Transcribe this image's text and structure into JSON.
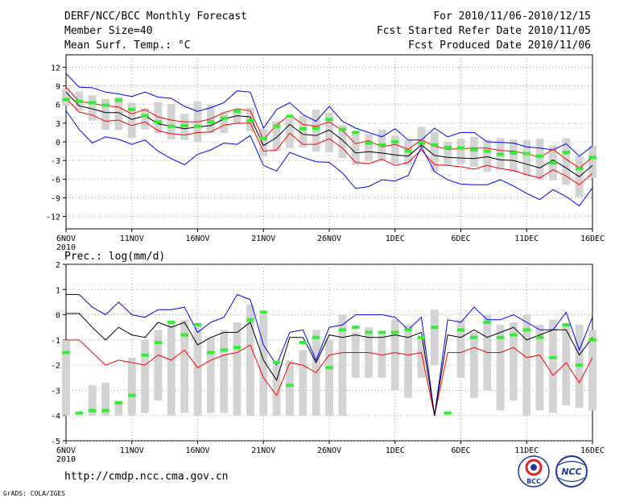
{
  "header": {
    "title": "DERF/NCC/BCC Monthly Forecast",
    "member_size": "Member Size=40",
    "variable": "Mean Surf. Temp.: °C",
    "for_period": "For 2010/11/06-2010/12/15",
    "fcst_started": "Fcst Started Refer Date 2010/11/05",
    "fcst_produced": "Fcst Produced Date 2010/11/06"
  },
  "footer": {
    "url": "http://cmdp.ncc.cma.gov.cn",
    "grads": "GrADS: COLA/IGES",
    "logo_bcc": "BCC",
    "logo_ncc": "NCC"
  },
  "colors": {
    "max": "#0000ff",
    "min": "#ff0000",
    "mean": "#000000",
    "obs": "#33ee33",
    "box": "#d3d3d3"
  },
  "chart_data": [
    {
      "type": "line",
      "title": "Mean Surf. Temp.: °C",
      "ylim": [
        -14,
        14
      ],
      "yticks": [
        12,
        9,
        6,
        3,
        0,
        -3,
        -6,
        -9,
        -12
      ],
      "xlim": [
        0,
        40
      ],
      "xticks": [
        {
          "pos": 0,
          "label": "6NOV",
          "sub": "2010"
        },
        {
          "pos": 5,
          "label": "11NOV"
        },
        {
          "pos": 10,
          "label": "16NOV"
        },
        {
          "pos": 15,
          "label": "21NOV"
        },
        {
          "pos": 20,
          "label": "26NOV"
        },
        {
          "pos": 25,
          "label": "1DEC"
        },
        {
          "pos": 30,
          "label": "6DEC"
        },
        {
          "pos": 35,
          "label": "11DEC"
        },
        {
          "pos": 40,
          "label": "16DEC"
        }
      ],
      "series": [
        {
          "name": "max",
          "values": [
            11.0,
            8.8,
            8.7,
            8.0,
            7.7,
            7.3,
            8.0,
            7.2,
            7.0,
            5.7,
            4.9,
            5.5,
            6.3,
            8.2,
            8.0,
            2.2,
            5.2,
            6.3,
            4.4,
            3.3,
            5.7,
            3.3,
            2.2,
            1.5,
            0.8,
            2.1,
            0.3,
            0.3,
            2.2,
            0.8,
            1.5,
            1.5,
            0.0,
            -0.1,
            -0.2,
            -0.8,
            -1.0,
            -1.3,
            -0.3,
            -2.3,
            -0.7
          ]
        },
        {
          "name": "min",
          "values": [
            5.0,
            2.0,
            -0.2,
            0.8,
            0.4,
            -0.4,
            0.3,
            -1.5,
            -2.7,
            -3.7,
            -2.0,
            -1.3,
            -0.2,
            -0.4,
            1.0,
            -3.8,
            -4.7,
            -1.7,
            -2.5,
            -3.2,
            -3.3,
            -5.0,
            -7.5,
            -7.2,
            -6.1,
            -6.3,
            -5.4,
            -0.8,
            -4.8,
            -6.1,
            -6.8,
            -6.9,
            -6.9,
            -6.1,
            -7.1,
            -8.3,
            -9.3,
            -7.7,
            -8.8,
            -10.3,
            -7.4
          ]
        },
        {
          "name": "upper",
          "values": [
            8.8,
            6.5,
            6.2,
            5.8,
            5.6,
            4.5,
            5.2,
            4.0,
            3.5,
            3.2,
            3.2,
            3.7,
            4.7,
            5.3,
            5.0,
            0.4,
            2.7,
            4.3,
            2.8,
            2.5,
            3.2,
            1.8,
            -0.3,
            0.2,
            -0.8,
            -0.4,
            -1.2,
            0.3,
            -0.7,
            -1.2,
            -1.1,
            -1.0,
            -1.0,
            -1.4,
            -1.5,
            -1.9,
            -2.5,
            -1.2,
            -2.8,
            -4.2,
            -2.5
          ]
        },
        {
          "name": "lower",
          "values": [
            7.0,
            4.8,
            4.3,
            3.3,
            3.5,
            2.6,
            3.2,
            1.8,
            1.3,
            1.1,
            1.5,
            1.6,
            2.7,
            3.0,
            3.0,
            -1.5,
            -1.3,
            1.4,
            -0.4,
            -0.4,
            0.5,
            -1.0,
            -3.3,
            -3.5,
            -2.8,
            -3.8,
            -3.3,
            -1.3,
            -3.7,
            -3.8,
            -4.0,
            -4.4,
            -3.8,
            -4.3,
            -4.6,
            -5.3,
            -5.8,
            -4.5,
            -5.5,
            -6.9,
            -5.1
          ]
        },
        {
          "name": "mean",
          "values": [
            8.0,
            5.8,
            5.3,
            4.7,
            4.7,
            3.6,
            4.2,
            2.9,
            2.5,
            2.1,
            2.4,
            2.6,
            3.7,
            4.2,
            4.0,
            -0.6,
            0.7,
            2.8,
            1.2,
            1.0,
            1.9,
            0.3,
            -1.8,
            -1.6,
            -1.8,
            -2.1,
            -2.3,
            -0.5,
            -2.2,
            -2.5,
            -2.6,
            -2.7,
            -2.4,
            -2.9,
            -3.0,
            -3.6,
            -4.2,
            -2.9,
            -4.2,
            -5.6,
            -3.8
          ]
        },
        {
          "name": "obs",
          "values": [
            6.8,
            6.5,
            6.3,
            5.9,
            6.7,
            5.2,
            4.2,
            3.2,
            2.5,
            2.6,
            2.5,
            3.2,
            3.8,
            4.9,
            3.4,
            0.5,
            2.5,
            4.1,
            2.1,
            2.2,
            3.6,
            2.0,
            1.5,
            -0.2,
            -0.5,
            0.0,
            -1.5,
            -0.2,
            -0.5,
            -0.9,
            -1.0,
            -1.3,
            -1.5,
            -2.0,
            -1.8,
            -1.9,
            -2.3,
            -3.4,
            -1.7,
            -4.3,
            -2.5
          ]
        },
        {
          "name": "box_top",
          "values": [
            8.5,
            8.1,
            7.5,
            6.9,
            7.2,
            6.3,
            5.4,
            6.4,
            6.1,
            4.5,
            6.5,
            6.0,
            4.7,
            5.0,
            5.5,
            2.0,
            3.3,
            3.7,
            4.2,
            5.2,
            4.7,
            2.7,
            1.2,
            1.2,
            2.0,
            1.0,
            0.3,
            2.4,
            1.6,
            0.0,
            0.5,
            0.8,
            0.3,
            0.6,
            0.4,
            0.3,
            0.5,
            -0.6,
            0.6,
            -2.3,
            -0.6
          ]
        },
        {
          "name": "box_bot",
          "values": [
            5.8,
            5.0,
            3.4,
            1.9,
            1.9,
            0.6,
            2.0,
            1.4,
            0.4,
            0.3,
            0.0,
            1.4,
            1.4,
            2.8,
            1.7,
            -2.3,
            -1.5,
            -1.0,
            -0.9,
            -1.6,
            -1.7,
            -2.6,
            -3.7,
            -3.1,
            -3.0,
            -3.5,
            -3.7,
            -0.9,
            -4.8,
            -3.8,
            -3.6,
            -4.0,
            -4.8,
            -4.3,
            -4.9,
            -5.4,
            -6.1,
            -6.2,
            -6.9,
            -8.9,
            -5.8
          ]
        }
      ]
    },
    {
      "type": "line",
      "title": "Prec.: log(mm/d)",
      "ylim": [
        -5,
        2
      ],
      "yticks": [
        2,
        1,
        0,
        -1,
        -2,
        -3,
        -4,
        -5
      ],
      "xlim": [
        0,
        40
      ],
      "xticks": [
        {
          "pos": 0,
          "label": "6NOV",
          "sub": "2010"
        },
        {
          "pos": 5,
          "label": "11NOV"
        },
        {
          "pos": 10,
          "label": "16NOV"
        },
        {
          "pos": 15,
          "label": "21NOV"
        },
        {
          "pos": 20,
          "label": "26NOV"
        },
        {
          "pos": 25,
          "label": "1DEC"
        },
        {
          "pos": 30,
          "label": "6DEC"
        },
        {
          "pos": 35,
          "label": "11DEC"
        },
        {
          "pos": 40,
          "label": "16DEC"
        }
      ],
      "series": [
        {
          "name": "max",
          "values": [
            0.8,
            0.8,
            0.3,
            0.0,
            0.5,
            0.0,
            -0.1,
            0.2,
            0.2,
            0.3,
            -0.7,
            -0.3,
            -0.1,
            0.8,
            0.6,
            -1.2,
            -2.0,
            -0.7,
            -0.6,
            -1.8,
            -0.5,
            -0.4,
            0.0,
            0.0,
            0.0,
            -0.1,
            -0.6,
            -0.1,
            -4.0,
            -0.2,
            -0.3,
            0.3,
            -0.2,
            -0.2,
            0.0,
            -0.3,
            -0.6,
            -0.6,
            0.1,
            -1.4,
            -0.1
          ]
        },
        {
          "name": "mean",
          "values": [
            0.05,
            0.05,
            -0.5,
            -1.0,
            -0.5,
            -0.8,
            -0.9,
            -0.3,
            -0.5,
            -0.3,
            -1.2,
            -0.9,
            -0.7,
            -0.7,
            -0.3,
            -1.8,
            -2.6,
            -0.9,
            -0.9,
            -1.9,
            -0.8,
            -0.9,
            -0.8,
            -0.9,
            -0.9,
            -0.8,
            -0.9,
            -0.7,
            -4.0,
            -0.8,
            -0.9,
            -0.6,
            -0.9,
            -0.7,
            -0.5,
            -1.0,
            -0.8,
            -0.6,
            -0.6,
            -1.6,
            -0.9
          ]
        },
        {
          "name": "min",
          "values": [
            -1.0,
            -1.0,
            -1.5,
            -2.0,
            -1.8,
            -1.9,
            -2.0,
            -1.6,
            -1.8,
            -1.4,
            -2.1,
            -1.8,
            -1.6,
            -1.5,
            -1.2,
            -2.5,
            -3.2,
            -1.9,
            -2.0,
            -2.3,
            -1.6,
            -1.5,
            -1.5,
            -1.5,
            -1.6,
            -1.5,
            -1.6,
            -1.5,
            -4.0,
            -1.5,
            -1.5,
            -1.3,
            -1.5,
            -1.5,
            -1.3,
            -1.7,
            -1.6,
            -2.4,
            -1.9,
            -2.7,
            -1.7
          ]
        },
        {
          "name": "obs",
          "values": [
            -1.5,
            -3.9,
            -3.8,
            -3.8,
            -3.5,
            -3.2,
            -1.6,
            -1.1,
            -0.3,
            -0.8,
            -0.4,
            -1.5,
            -1.4,
            -1.3,
            -0.2,
            0.1,
            -1.9,
            -2.8,
            -1.1,
            -0.9,
            -2.1,
            -0.6,
            -0.5,
            -0.7,
            -0.7,
            -0.7,
            -0.6,
            -0.9,
            -0.5,
            -3.9,
            -0.6,
            -0.9,
            -0.3,
            -0.9,
            -0.8,
            -0.6,
            -0.9,
            -1.7,
            -0.4,
            -2.0,
            -1.0
          ]
        },
        {
          "name": "box_top",
          "values": [
            -1.0,
            -4.0,
            -2.8,
            -2.7,
            -3.4,
            -1.7,
            -1.0,
            -0.6,
            -0.3,
            -0.2,
            -0.5,
            -0.9,
            -0.6,
            -0.3,
            0.4,
            0.0,
            -2.0,
            -1.8,
            -1.4,
            -0.6,
            -1.0,
            0.0,
            -0.7,
            -0.5,
            -0.8,
            -0.2,
            -0.4,
            -0.9,
            0.2,
            -4.0,
            -0.2,
            -0.7,
            0.0,
            -0.4,
            -0.3,
            0.0,
            -0.4,
            -0.2,
            -0.4,
            -0.4,
            -0.6
          ]
        },
        {
          "name": "box_bot",
          "values": [
            -4.0,
            -4.0,
            -4.0,
            -4.0,
            -4.0,
            -4.0,
            -3.9,
            -3.4,
            -4.0,
            -3.9,
            -4.0,
            -3.9,
            -3.9,
            -4.0,
            -4.0,
            -4.0,
            -4.0,
            -4.0,
            -4.0,
            -4.0,
            -4.0,
            -4.0,
            -2.5,
            -2.5,
            -2.5,
            -3.0,
            -3.3,
            -2.5,
            -2.0,
            -4.0,
            -2.5,
            -3.3,
            -3.0,
            -3.8,
            -3.4,
            -4.0,
            -3.8,
            -3.9,
            -3.6,
            -3.7,
            -3.8
          ]
        }
      ]
    }
  ]
}
